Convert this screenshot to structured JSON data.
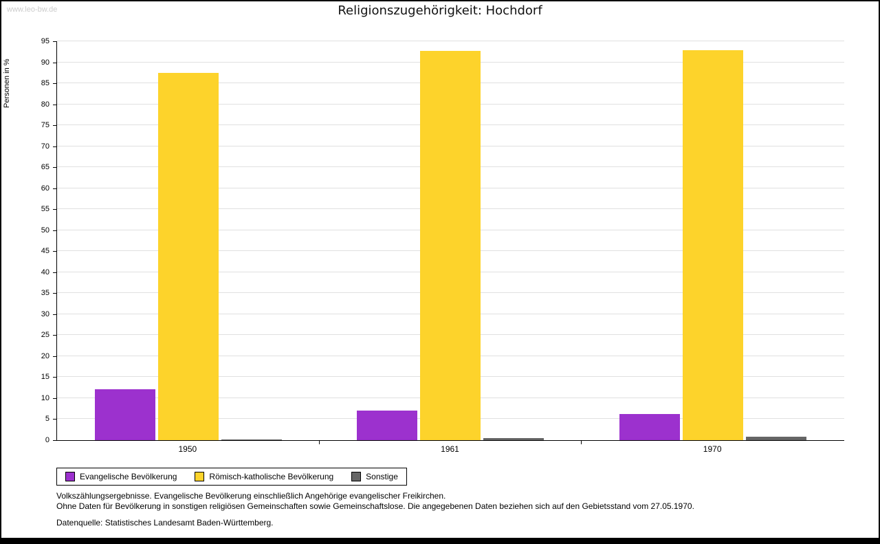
{
  "watermark": "www.leo-bw.de",
  "title": "Religionszugehörigkeit: Hochdorf",
  "chart_data": {
    "type": "bar",
    "title": "Religionszugehörigkeit: Hochdorf",
    "xlabel": "",
    "ylabel": "Personen in %",
    "ylim": [
      0,
      95
    ],
    "ytick_step": 5,
    "grid": true,
    "legend_position": "bottom-left",
    "categories": [
      "1950",
      "1961",
      "1970"
    ],
    "series": [
      {
        "name": "Evangelische Bevölkerung",
        "color": "#9c31ce",
        "values": [
          12.2,
          7.0,
          6.3
        ]
      },
      {
        "name": "Römisch-katholische Bevölkerung",
        "color": "#fdd32b",
        "values": [
          87.5,
          92.7,
          92.8
        ]
      },
      {
        "name": "Sonstige",
        "color": "#666666",
        "values": [
          0.2,
          0.5,
          0.8
        ]
      }
    ]
  },
  "footnotes": {
    "line1": "Volkszählungsergebnisse. Evangelische Bevölkerung einschließlich Angehörige evangelischer Freikirchen.",
    "line2": "Ohne Daten für Bevölkerung in sonstigen religiösen Gemeinschaften sowie Gemeinschaftslose. Die angegebenen Daten beziehen sich auf den Gebietsstand vom 27.05.1970.",
    "source": "Datenquelle: Statistisches Landesamt Baden-Württemberg."
  }
}
